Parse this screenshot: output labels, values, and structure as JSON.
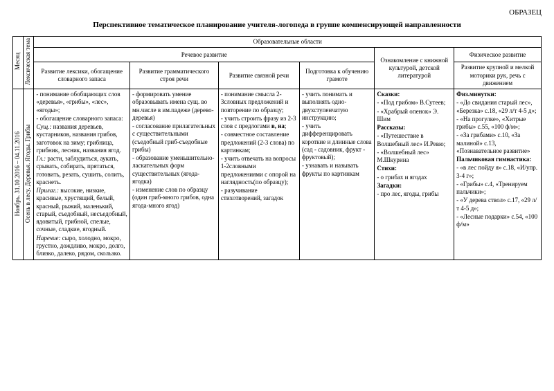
{
  "sample_label": "ОБРАЗЕЦ",
  "title": "Перспективное  тематическое планирование учителя-логопеда в группе компенсирующей направленности",
  "header": {
    "month": "Месяц",
    "lex_theme": "Лексическая тема",
    "edu_areas": "Образовательные области",
    "speech_dev": "Речевое развитие",
    "phys_dev": "Физическое развитие",
    "col1": "Развитие лексики, обогащение словарного запаса",
    "col2": "Развитие грамматического строя речи",
    "col3": "Развитие связной речи",
    "col4": "Подготовка к обучению грамоте",
    "col5": "Ознакомление с книжной культурой, детской литературой",
    "col6": "Развитие крупной и мелкой моторики рук, речь с движением"
  },
  "row": {
    "month_v": "Ноябрь. 31.10.2016 – 04.11.2016",
    "theme_v": "Осень в лесу. Деревья. Ягоды. Грибы",
    "c1": "- понимание обобщающих слов «деревья», «грибы», «лес», «ягоды»;\n- обогащение словарного запаса:\n<i>Сущ.:</i> названия деревьев, кустарников, названия грибов, заготовок на зиму; грибница, грибник, лесник, названия ягод.\n<i>Гл.:</i> расти, заблудиться, аукать, срывать, собирать, прятаться, готовить, резать, сушить, солить, краснеть.\n<i>Прилаг.:</i> высокие, низкие, красивые, хрустящий, белый, красный, рыжий, маленький, старый, съедобный, несъедобный, ядовитый, грибной, спелые, сочные, сладкие, ягодный.\n<i>Наречие:</i> сыро, холодно, мокро, грустно, дождливо, мокро, долго, близко, далеко, рядом, скользко.",
    "c2": "- формировать умение образовывать имена сущ. во мн.числе в им.падеже (дерево-деревья)\n- согласование прилагательных с существительными (съедобный гриб-съедобные грибы)\n- образование уменьшительно-ласкательных форм существительных (ягода-ягодка)\n- изменение слов по образцу (один гриб-много грибов, одна ягода-много ягод)",
    "c3": "- понимание смысла 2-3словных предложений и повторение по образцу;\n- учить строить фразу из 2-3 слов с предлогами <b>в, на</b>;\n- совместное составление предложений (2-3 слова) по картинкам;\n- учить отвечать на вопросы 1-2словными предложениями с опорой на наглядность(по образцу);\n- разучивание стихотворений, загадок",
    "c4": "- учить понимать и выполнять одно-двухступенчатую инструкцию;\n- учить дифференцировать короткие и длинные слова (сад - садовник, фрукт - фруктовый);\n- узнавать и называть фрукты по картинкам",
    "c5": "<b>Сказки:</b>\n- «Под грибом» В.Сутеев;\n- «Храбрый опенок» Э. Шим\n<b>Рассказы:</b>\n- «Путешествие в Волшебный лес» И.Ревю;\n- «Волшебный лес» М.Шкурина\n<b>Стихи:</b>\n- о грибах и ягодах\n<b>Загадки:</b>\n- про лес, ягоды, грибы",
    "c6": "<b>Физ.минутки:</b>\n- «До свидания старый лес», «Березка» с.18, «29 л/т 4-5 д»;\n- «На прогулке», «Хитрые грибы» с.55, «100 ф/м»;\n- «За грибами» с.10, «За малиной» с.13, «Познавательное развитие»\n<b>Пальчиковая гимнастика:</b>\n- «в лес пойду я» с.18, «И/упр. 3-4 г»;\n- «Грибы» с.4, «Тренируем пальчики»;\n- «У дерева ствол» с.17, «29 л/т 4-5 д»;\n- «Лесные подарки» с.54, «100 ф/м»"
  }
}
